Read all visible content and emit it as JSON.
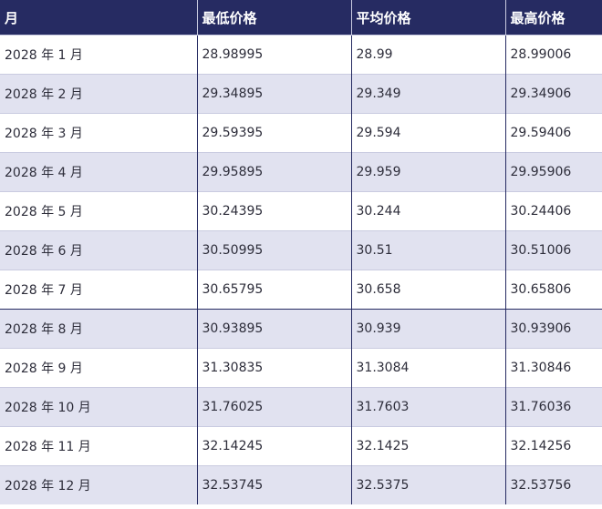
{
  "headers": [
    "月",
    "最低价格",
    "平均价格",
    "最高价格"
  ],
  "rows": [
    [
      "2028 年 1 月",
      "28.98995",
      "28.99",
      "28.99006"
    ],
    [
      "2028 年 2 月",
      "29.34895",
      "29.349",
      "29.34906"
    ],
    [
      "2028 年 3 月",
      "29.59395",
      "29.594",
      "29.59406"
    ],
    [
      "2028 年 4 月",
      "29.95895",
      "29.959",
      "29.95906"
    ],
    [
      "2028 年 5 月",
      "30.24395",
      "30.244",
      "30.24406"
    ],
    [
      "2028 年 6 月",
      "30.50995",
      "30.51",
      "30.51006"
    ],
    [
      "2028 年 7 月",
      "30.65795",
      "30.658",
      "30.65806"
    ],
    [
      "2028 年 8 月",
      "30.93895",
      "30.939",
      "30.93906"
    ],
    [
      "2028 年 9 月",
      "31.30835",
      "31.3084",
      "31.30846"
    ],
    [
      "2028 年 10 月",
      "31.76025",
      "31.7603",
      "31.76036"
    ],
    [
      "2028 年 11 月",
      "32.14245",
      "32.1425",
      "32.14256"
    ],
    [
      "2028 年 12 月",
      "32.53745",
      "32.5375",
      "32.53756"
    ]
  ]
}
